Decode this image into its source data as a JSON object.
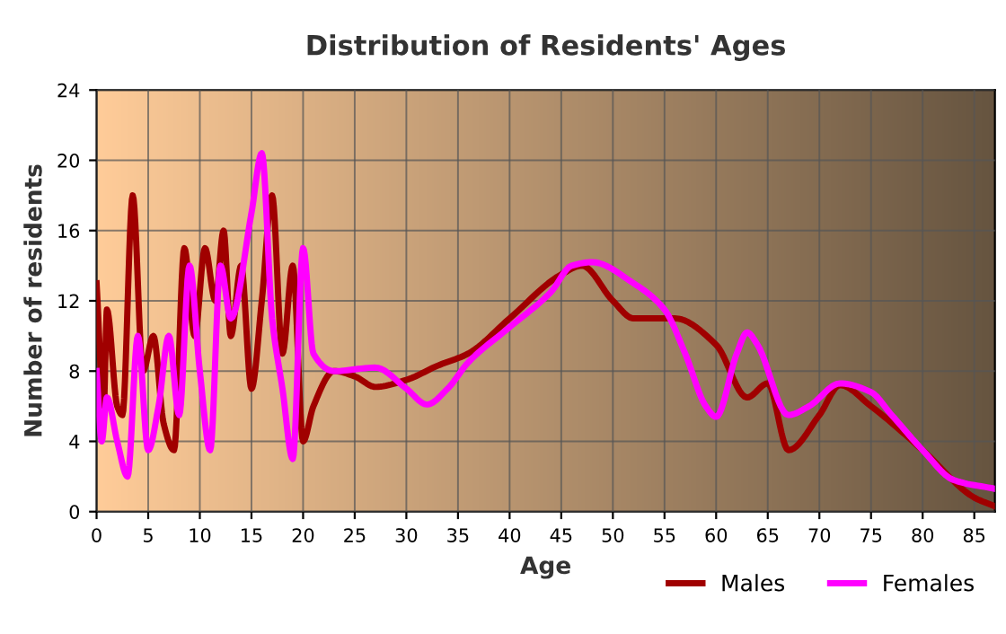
{
  "chart_data": {
    "type": "line",
    "title": "Distribution of Residents' Ages",
    "xlabel": "Age",
    "ylabel": "Number of residents",
    "xlim": [
      0,
      87
    ],
    "xticks": [
      0,
      5,
      10,
      15,
      20,
      25,
      30,
      35,
      40,
      45,
      50,
      55,
      60,
      65,
      70,
      75,
      80,
      85
    ],
    "ylim": [
      0,
      24
    ],
    "yticks": [
      0,
      4,
      8,
      12,
      16,
      20,
      24
    ],
    "grid": true,
    "legend": "bottom",
    "marker": "none",
    "line_style": "solid",
    "series": [
      {
        "name": "Males",
        "color": "#a00000",
        "x": [
          0,
          0.7,
          1,
          2,
          2.5,
          3.5,
          4.5,
          5.5,
          6.5,
          7.5,
          8.5,
          9.5,
          10.5,
          11.5,
          12.3,
          13,
          14,
          15,
          16,
          17,
          18,
          19,
          20,
          21,
          23,
          25,
          27,
          30,
          33,
          36,
          40,
          45,
          47,
          50,
          52,
          56,
          60,
          63,
          65,
          67,
          70,
          72,
          75,
          80,
          85,
          87
        ],
        "values": [
          13,
          6,
          11.5,
          6,
          5.5,
          18,
          8,
          10,
          5,
          3.5,
          15,
          10,
          15,
          12,
          16,
          10,
          14,
          7,
          12,
          18,
          9,
          14,
          4,
          6,
          8,
          7.7,
          7.1,
          7.5,
          8.3,
          9,
          11,
          13.5,
          14,
          12,
          11,
          11,
          9.5,
          6.5,
          7.3,
          3.5,
          5.5,
          7.2,
          6,
          3.5,
          0.8,
          0.3
        ]
      },
      {
        "name": "Females",
        "color": "#ff00ff",
        "x": [
          0,
          0.5,
          1,
          2,
          3,
          4,
          5,
          6,
          7,
          8,
          9,
          10,
          11,
          12,
          13,
          15,
          16,
          17,
          18,
          19,
          20,
          21,
          23,
          27,
          30,
          32,
          34,
          36,
          40,
          44,
          46,
          48,
          52,
          55,
          57,
          59,
          60,
          62,
          63,
          64,
          67,
          69,
          72,
          75,
          77,
          80,
          83,
          87
        ],
        "values": [
          8,
          4,
          6.5,
          4,
          2,
          10,
          3.5,
          6,
          10,
          5.5,
          14,
          8,
          3.5,
          14,
          11,
          17,
          20.4,
          11,
          7,
          3,
          15,
          9,
          8,
          8.2,
          7,
          6.1,
          7,
          8.5,
          10.5,
          12.5,
          14,
          14.2,
          13,
          11.5,
          9,
          6,
          5.4,
          9,
          10.2,
          9.5,
          5.5,
          6,
          7.3,
          6.8,
          5.5,
          3.5,
          1.8,
          1.3
        ]
      }
    ]
  }
}
